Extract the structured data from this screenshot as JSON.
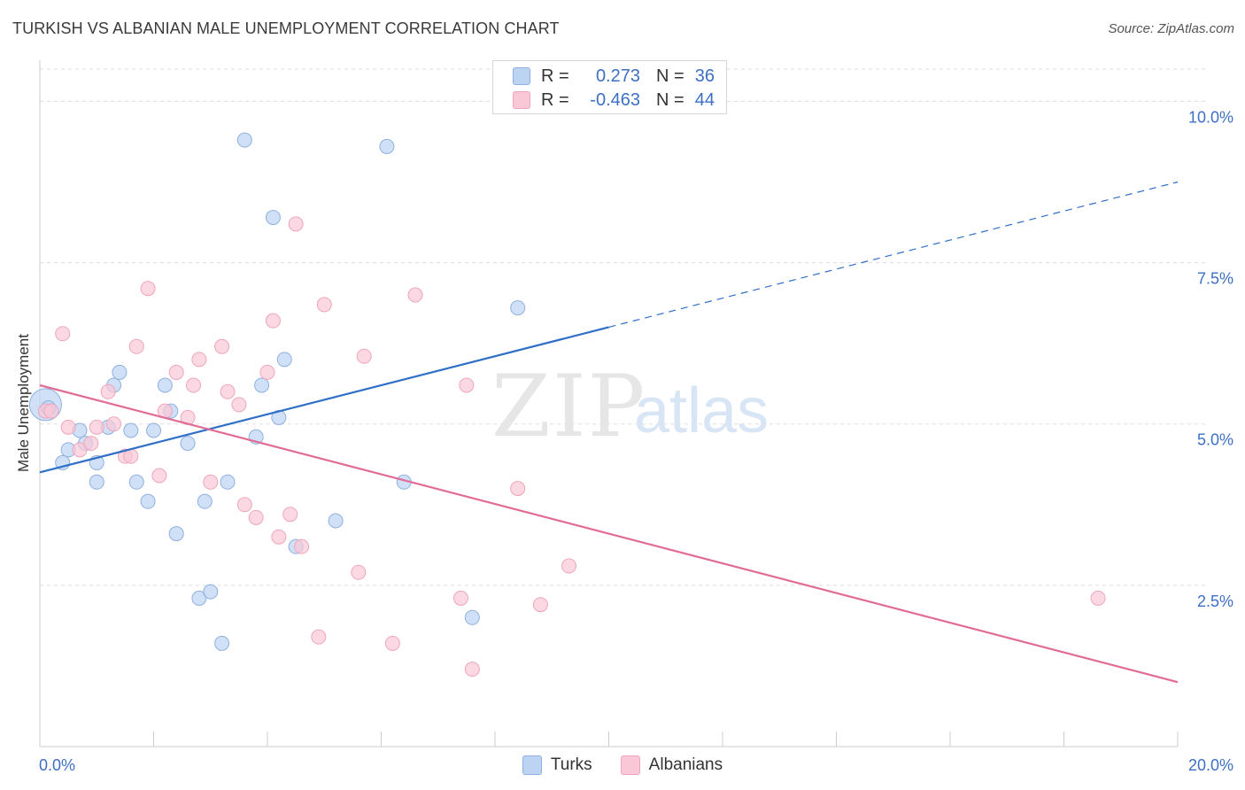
{
  "header": {
    "title": "TURKISH VS ALBANIAN MALE UNEMPLOYMENT CORRELATION CHART",
    "source": "Source: ZipAtlas.com"
  },
  "legend": {
    "r_label": "R =",
    "n_label": "N =",
    "turks": {
      "r": "0.273",
      "n": "36"
    },
    "albanians": {
      "r": "-0.463",
      "n": "44"
    }
  },
  "watermark": {
    "zip": "ZIP",
    "atlas": "atlas"
  },
  "colors": {
    "turks_fill": "#bcd3f2",
    "turks_stroke": "#8fb0e0",
    "turks_line": "#2f6fc7",
    "albanians_fill": "#f9c7d6",
    "albanians_stroke": "#eea6bd",
    "albanians_line": "#e26b96",
    "tick_label": "#3d6fc4",
    "grid": "#dddddd"
  },
  "chart_data": {
    "type": "scatter",
    "xlabel": "",
    "ylabel": "Male Unemployment",
    "xlim": [
      0,
      20
    ],
    "ylim": [
      0,
      10.5
    ],
    "x_tick_labels": [
      {
        "value": 0,
        "label": "0.0%"
      },
      {
        "value": 20,
        "label": "20.0%"
      }
    ],
    "y_tick_labels": [
      {
        "value": 2.5,
        "label": "2.5%"
      },
      {
        "value": 5.0,
        "label": "5.0%"
      },
      {
        "value": 7.5,
        "label": "7.5%"
      },
      {
        "value": 10.0,
        "label": "10.0%"
      }
    ],
    "grid": true,
    "legend_position": "top-center and bottom",
    "series": [
      {
        "name": "Turks",
        "points": [
          [
            0.1,
            5.3
          ],
          [
            0.4,
            4.4
          ],
          [
            0.5,
            4.6
          ],
          [
            0.7,
            4.9
          ],
          [
            0.8,
            4.7
          ],
          [
            1.0,
            4.4
          ],
          [
            1.0,
            4.1
          ],
          [
            1.3,
            5.6
          ],
          [
            1.4,
            5.8
          ],
          [
            1.6,
            4.9
          ],
          [
            1.7,
            4.1
          ],
          [
            1.9,
            3.8
          ],
          [
            2.0,
            4.9
          ],
          [
            2.2,
            5.6
          ],
          [
            2.3,
            5.2
          ],
          [
            2.4,
            3.3
          ],
          [
            2.6,
            4.7
          ],
          [
            2.9,
            3.8
          ],
          [
            2.8,
            2.3
          ],
          [
            3.0,
            2.4
          ],
          [
            3.2,
            1.6
          ],
          [
            3.3,
            4.1
          ],
          [
            3.6,
            9.4
          ],
          [
            3.8,
            4.8
          ],
          [
            3.9,
            5.6
          ],
          [
            4.1,
            8.2
          ],
          [
            4.2,
            5.1
          ],
          [
            4.3,
            6.0
          ],
          [
            4.5,
            3.1
          ],
          [
            5.2,
            3.5
          ],
          [
            6.1,
            9.3
          ],
          [
            6.4,
            4.1
          ],
          [
            7.6,
            2.0
          ],
          [
            8.4,
            6.8
          ],
          [
            0.15,
            5.25
          ],
          [
            1.2,
            4.95
          ]
        ],
        "trend": {
          "x0": 0,
          "y0": 4.25,
          "x1": 10,
          "y1": 6.5,
          "dashed_to_x": 20,
          "dashed_to_y": 8.75
        }
      },
      {
        "name": "Albanians",
        "points": [
          [
            0.1,
            5.2
          ],
          [
            0.2,
            5.2
          ],
          [
            0.4,
            6.4
          ],
          [
            0.5,
            4.95
          ],
          [
            0.7,
            4.6
          ],
          [
            0.9,
            4.7
          ],
          [
            1.0,
            4.95
          ],
          [
            1.2,
            5.5
          ],
          [
            1.3,
            5.0
          ],
          [
            1.5,
            4.5
          ],
          [
            1.6,
            4.5
          ],
          [
            1.7,
            6.2
          ],
          [
            1.9,
            7.1
          ],
          [
            2.1,
            4.2
          ],
          [
            2.2,
            5.2
          ],
          [
            2.4,
            5.8
          ],
          [
            2.6,
            5.1
          ],
          [
            2.7,
            5.6
          ],
          [
            2.8,
            6.0
          ],
          [
            3.0,
            4.1
          ],
          [
            3.2,
            6.2
          ],
          [
            3.3,
            5.5
          ],
          [
            3.5,
            5.3
          ],
          [
            3.6,
            3.75
          ],
          [
            3.8,
            3.55
          ],
          [
            4.0,
            5.8
          ],
          [
            4.1,
            6.6
          ],
          [
            4.2,
            3.25
          ],
          [
            4.4,
            3.6
          ],
          [
            4.5,
            8.1
          ],
          [
            4.6,
            3.1
          ],
          [
            4.9,
            1.7
          ],
          [
            5.0,
            6.85
          ],
          [
            5.6,
            2.7
          ],
          [
            5.7,
            6.05
          ],
          [
            6.2,
            1.6
          ],
          [
            6.6,
            7.0
          ],
          [
            7.4,
            2.3
          ],
          [
            7.5,
            5.6
          ],
          [
            7.6,
            1.2
          ],
          [
            8.4,
            4.0
          ],
          [
            8.8,
            2.2
          ],
          [
            9.3,
            2.8
          ],
          [
            18.6,
            2.3
          ]
        ],
        "trend": {
          "x0": 0,
          "y0": 5.6,
          "x1": 20,
          "y1": 1.0
        }
      }
    ]
  }
}
